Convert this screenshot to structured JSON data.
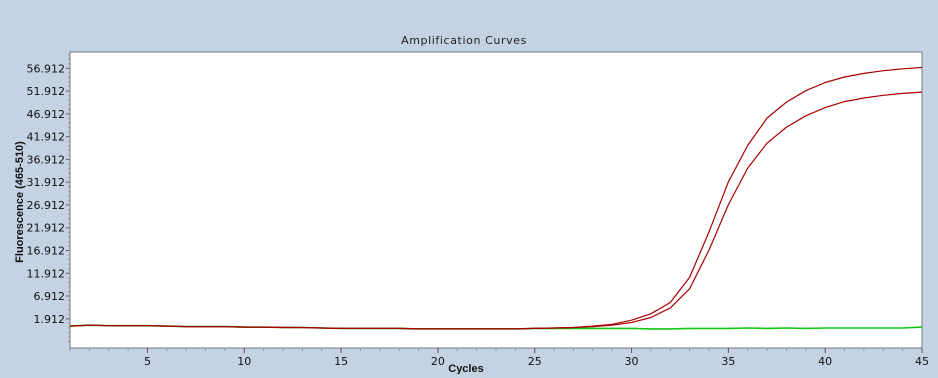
{
  "chart_data": {
    "type": "line",
    "title": "Amplification Curves",
    "xlabel": "Cycles",
    "ylabel": "Fluorescence (465-510)",
    "xlim": [
      1,
      45
    ],
    "ylim": [
      -4.5,
      60.5
    ],
    "x_ticks": [
      5,
      10,
      15,
      20,
      25,
      30,
      35,
      40,
      45
    ],
    "y_ticks": [
      1.912,
      6.912,
      11.912,
      16.912,
      21.912,
      26.912,
      31.912,
      36.912,
      41.912,
      46.912,
      51.912,
      56.912
    ],
    "y_tick_labels": [
      "1.912",
      "6.912",
      "11.912",
      "16.912",
      "21.912",
      "26.912",
      "31.912",
      "36.912",
      "41.912",
      "46.912",
      "51.912",
      "56.912"
    ],
    "grid": false,
    "series": [
      {
        "color": "#a80000",
        "x": [
          1,
          2,
          3,
          4,
          5,
          6,
          7,
          8,
          9,
          10,
          11,
          12,
          13,
          14,
          15,
          16,
          17,
          18,
          19,
          20,
          21,
          22,
          23,
          24,
          25,
          26,
          27,
          28,
          29,
          30,
          31,
          32,
          33,
          34,
          35,
          36,
          37,
          38,
          39,
          40,
          41,
          42,
          43,
          44,
          45
        ],
        "y": [
          0.3,
          0.5,
          0.4,
          0.4,
          0.4,
          0.3,
          0.2,
          0.2,
          0.2,
          0.1,
          0.1,
          0.0,
          0.0,
          -0.1,
          -0.2,
          -0.2,
          -0.2,
          -0.2,
          -0.3,
          -0.3,
          -0.3,
          -0.3,
          -0.3,
          -0.3,
          -0.2,
          -0.1,
          0.0,
          0.3,
          0.7,
          1.6,
          3.0,
          5.5,
          11.0,
          21.0,
          32.0,
          40.0,
          46.0,
          49.5,
          52.0,
          53.8,
          55.0,
          55.8,
          56.4,
          56.8,
          57.1
        ]
      },
      {
        "color": "#a80000",
        "x": [
          1,
          2,
          3,
          4,
          5,
          6,
          7,
          8,
          9,
          10,
          11,
          12,
          13,
          14,
          15,
          16,
          17,
          18,
          19,
          20,
          21,
          22,
          23,
          24,
          25,
          26,
          27,
          28,
          29,
          30,
          31,
          32,
          33,
          34,
          35,
          36,
          37,
          38,
          39,
          40,
          41,
          42,
          43,
          44,
          45
        ],
        "y": [
          0.3,
          0.5,
          0.4,
          0.4,
          0.4,
          0.3,
          0.2,
          0.2,
          0.2,
          0.1,
          0.1,
          0.0,
          0.0,
          -0.1,
          -0.2,
          -0.2,
          -0.2,
          -0.2,
          -0.3,
          -0.3,
          -0.3,
          -0.3,
          -0.3,
          -0.3,
          -0.2,
          -0.1,
          0.0,
          0.2,
          0.5,
          1.1,
          2.2,
          4.3,
          8.5,
          17.0,
          27.0,
          35.0,
          40.5,
          44.0,
          46.5,
          48.3,
          49.6,
          50.4,
          51.0,
          51.4,
          51.7
        ]
      },
      {
        "color": "#10c810",
        "x": [
          1,
          2,
          3,
          4,
          5,
          6,
          7,
          8,
          9,
          10,
          11,
          12,
          13,
          14,
          15,
          16,
          17,
          18,
          19,
          20,
          21,
          22,
          23,
          24,
          25,
          26,
          27,
          28,
          29,
          30,
          31,
          32,
          33,
          34,
          35,
          36,
          37,
          38,
          39,
          40,
          41,
          42,
          43,
          44,
          45
        ],
        "y": [
          0.3,
          0.5,
          0.4,
          0.4,
          0.4,
          0.3,
          0.2,
          0.2,
          0.2,
          0.1,
          0.1,
          0.0,
          0.0,
          -0.1,
          -0.2,
          -0.2,
          -0.2,
          -0.2,
          -0.3,
          -0.3,
          -0.3,
          -0.3,
          -0.3,
          -0.3,
          -0.2,
          -0.2,
          -0.2,
          -0.2,
          -0.2,
          -0.2,
          -0.3,
          -0.3,
          -0.2,
          -0.2,
          -0.2,
          -0.1,
          -0.2,
          -0.1,
          -0.2,
          -0.1,
          -0.1,
          -0.1,
          -0.1,
          -0.1,
          0.1
        ]
      }
    ]
  }
}
